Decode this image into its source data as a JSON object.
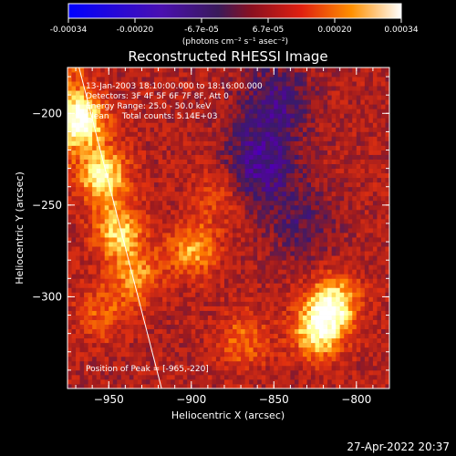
{
  "colorbar": {
    "ticks": [
      "-0.00034",
      "-0.00020",
      "-6.7e-05",
      "6.7e-05",
      "0.00020",
      "0.00034"
    ],
    "units": "(photons cm⁻² s⁻¹ asec⁻²)"
  },
  "title": "Reconstructed RHESSI Image",
  "annotations": {
    "time": "13-Jan-2003 18:10:00.000 to 18:16:00.000",
    "detectors": "Detectors: 3F 4F 5F 6F 7F 8F, Att 0",
    "energy": "Energy Range: 25.0 - 50.0 keV",
    "clean": "Clean     Total counts: 5.14E+03",
    "peak": "Position of Peak = [-965,-220]"
  },
  "footer": {
    "timestamp": "27-Apr-2022 20:37"
  },
  "chart_data": {
    "type": "heatmap",
    "title": "Reconstructed RHESSI Image",
    "xlabel": "Heliocentric X (arcsec)",
    "ylabel": "Heliocentric Y (arcsec)",
    "xlim": [
      -975,
      -780
    ],
    "ylim": [
      -350,
      -175
    ],
    "xticks": [
      -950,
      -900,
      -850,
      -800
    ],
    "yticks": [
      -200,
      -250,
      -300
    ],
    "colorbar_range": [
      -0.00034,
      0.00034
    ],
    "colormap": [
      "#0000ff",
      "#5500aa",
      "#3a1a6a",
      "#9a1a20",
      "#e03010",
      "#ff8000",
      "#ffff80",
      "#ffffff"
    ],
    "limb_line": [
      [
        -968,
        -175
      ],
      [
        -918,
        -350
      ]
    ],
    "peak_position": [
      -965,
      -220
    ],
    "hot_spots": [
      {
        "x": -968,
        "y": -205,
        "value": 0.00034
      },
      {
        "x": -955,
        "y": -235,
        "value": 0.0003
      },
      {
        "x": -945,
        "y": -265,
        "value": 0.00025
      },
      {
        "x": -935,
        "y": -290,
        "value": 0.00018
      },
      {
        "x": -815,
        "y": -305,
        "value": 0.0003
      },
      {
        "x": -825,
        "y": -320,
        "value": 0.00028
      },
      {
        "x": -900,
        "y": -275,
        "value": 0.0002
      },
      {
        "x": -870,
        "y": -325,
        "value": 0.00014
      },
      {
        "x": -885,
        "y": -245,
        "value": 0.0001
      },
      {
        "x": -955,
        "y": -310,
        "value": 0.00012
      }
    ],
    "cold_spots": [
      {
        "x": -860,
        "y": -230,
        "value": -0.00018
      },
      {
        "x": -850,
        "y": -195,
        "value": -0.00015
      },
      {
        "x": -835,
        "y": -260,
        "value": -0.0001
      }
    ]
  }
}
